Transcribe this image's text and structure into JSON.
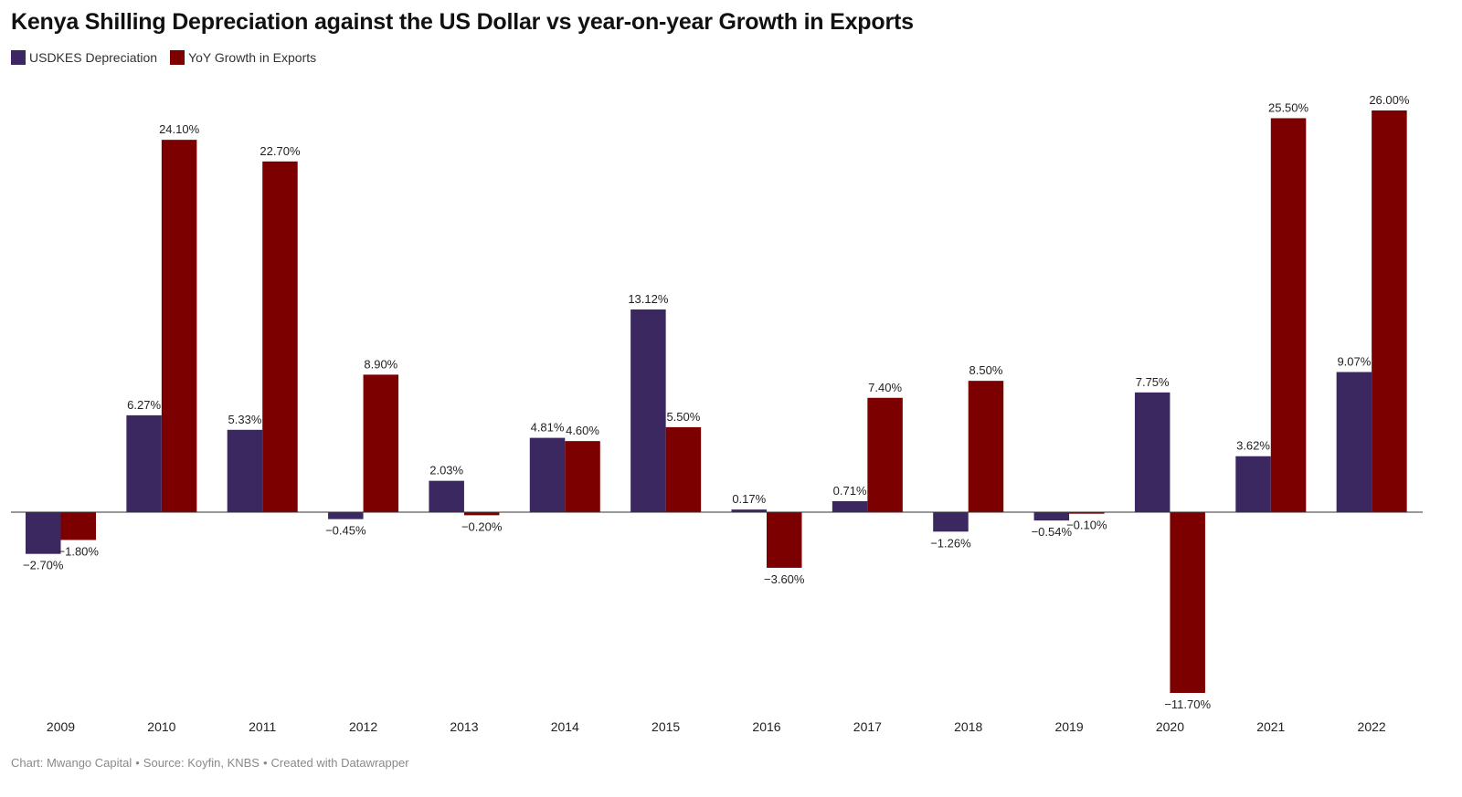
{
  "title": "Kenya Shilling Depreciation against the US Dollar vs year-on-year Growth in Exports",
  "legend": [
    {
      "label": "USDKES Depreciation",
      "color": "#3b2860"
    },
    {
      "label": "YoY Growth in Exports",
      "color": "#7d0000"
    }
  ],
  "footer": {
    "chart": "Chart: Mwango Capital",
    "source": "Source: Koyfin, KNBS",
    "created": "Created with Datawrapper",
    "separator": "•"
  },
  "chart_data": {
    "type": "bar",
    "categories": [
      "2009",
      "2010",
      "2011",
      "2012",
      "2013",
      "2014",
      "2015",
      "2016",
      "2017",
      "2018",
      "2019",
      "2020",
      "2021",
      "2022"
    ],
    "series": [
      {
        "name": "USDKES Depreciation",
        "color": "#3b2860",
        "values": [
          -2.7,
          6.27,
          5.33,
          -0.45,
          2.03,
          4.81,
          13.12,
          0.17,
          0.71,
          -1.26,
          -0.54,
          7.75,
          3.62,
          9.07
        ],
        "labels": [
          "−2.70%",
          "6.27%",
          "5.33%",
          "−0.45%",
          "2.03%",
          "4.81%",
          "13.12%",
          "0.17%",
          "0.71%",
          "−1.26%",
          "−0.54%",
          "7.75%",
          "3.62%",
          "9.07%"
        ]
      },
      {
        "name": "YoY Growth in Exports",
        "color": "#7d0000",
        "values": [
          -1.8,
          24.1,
          22.7,
          8.9,
          -0.2,
          4.6,
          5.5,
          -3.6,
          7.4,
          8.5,
          -0.1,
          -11.7,
          25.5,
          26.0
        ],
        "labels": [
          "−1.80%",
          "24.10%",
          "22.70%",
          "8.90%",
          "−0.20%",
          "4.60%",
          "5.50%",
          "−3.60%",
          "7.40%",
          "8.50%",
          "−0.10%",
          "−11.70%",
          "25.50%",
          "26.00%"
        ]
      }
    ],
    "ylim": [
      -11.7,
      26.0
    ],
    "grid": false,
    "legend_position": "top-left",
    "xlabel": "",
    "ylabel": ""
  }
}
